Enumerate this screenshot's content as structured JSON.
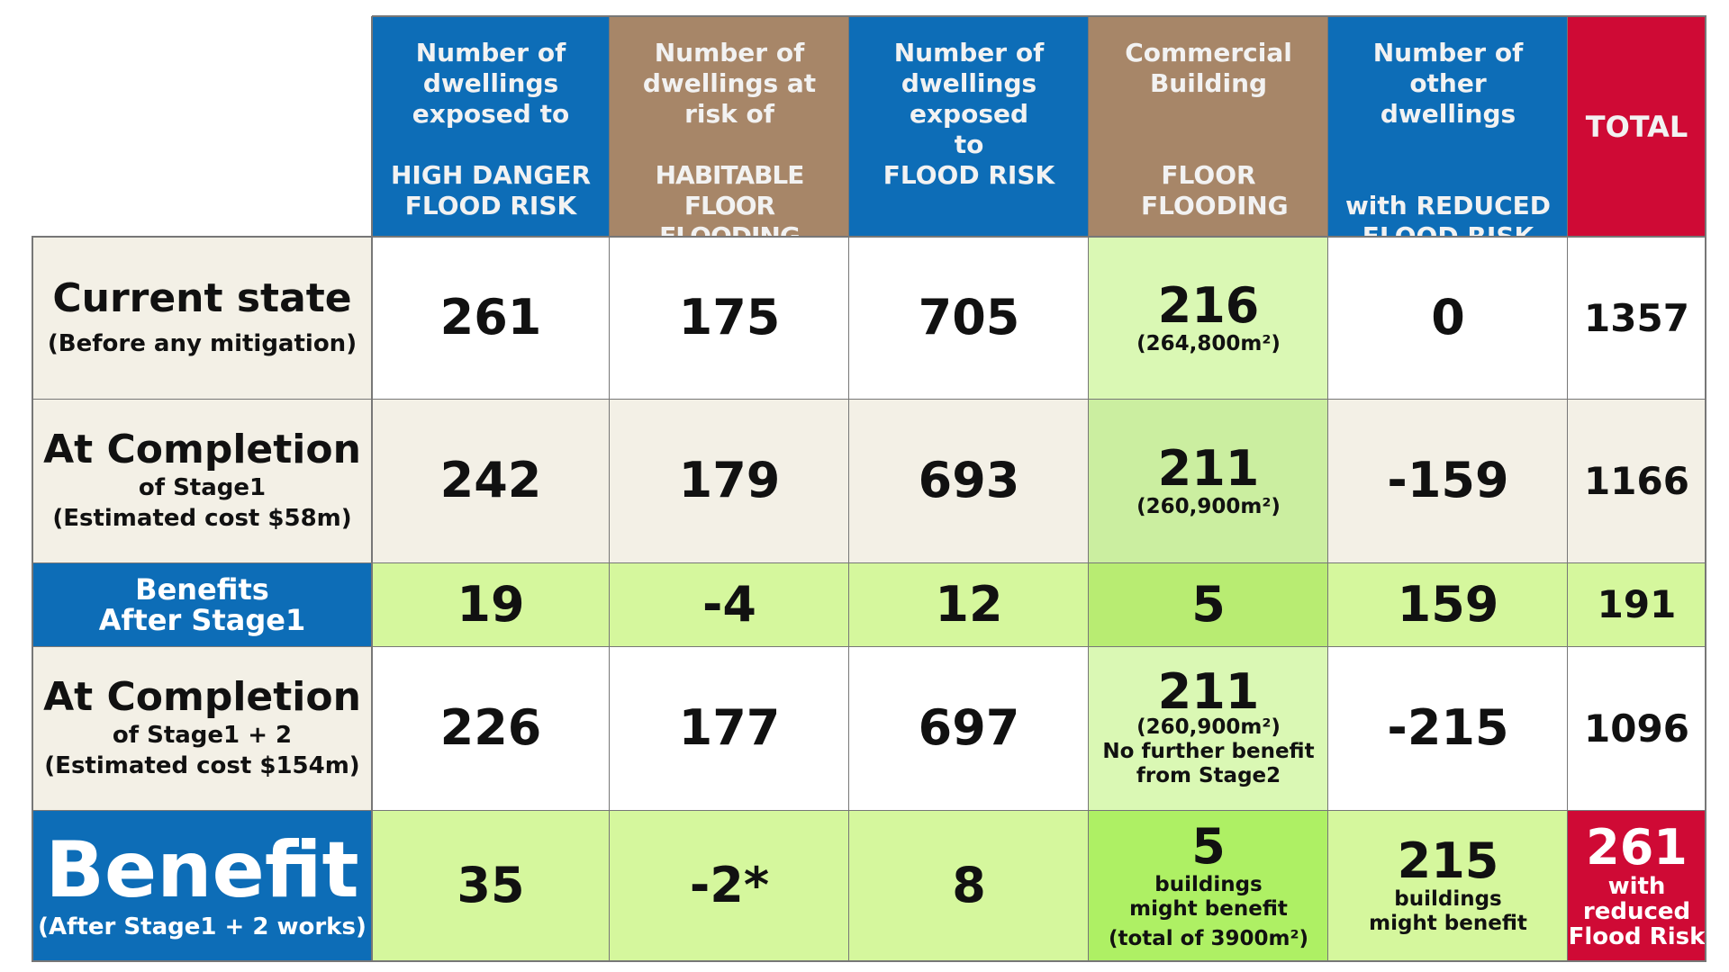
{
  "chart_data": {
    "type": "table",
    "columns": [
      {
        "top": "Number of dwellings exposed to",
        "bottom": "HIGH DANGER FLOOD RISK"
      },
      {
        "top": "Number of dwellings at risk of",
        "bottom": "HABITABLE FLOOR FLOODING"
      },
      {
        "top": "Number of dwellings exposed to",
        "bottom": "FLOOD RISK"
      },
      {
        "top": "Commercial Building",
        "bottom": "FLOOR FLOODING"
      },
      {
        "top": "Number of other dwellings",
        "bottom": "with REDUCED FLOOD RISK"
      },
      {
        "top": "TOTAL",
        "bottom": ""
      }
    ],
    "rows": [
      {
        "title": "Current state",
        "subtitle": "(Before any mitigation)",
        "values": [
          "261",
          "175",
          "705",
          "216",
          "0",
          "1357"
        ],
        "commercial_note": "(264,800m²)"
      },
      {
        "title": "At Completion",
        "subtitle": "of Stage1",
        "subtitle2": "(Estimated cost $58m)",
        "values": [
          "242",
          "179",
          "693",
          "211",
          "-159",
          "1166"
        ],
        "commercial_note": "(260,900m²)"
      },
      {
        "title": "Benefits",
        "subtitle": "After Stage1",
        "values": [
          "19",
          "-4",
          "12",
          "5",
          "159",
          "191"
        ]
      },
      {
        "title": "At Completion",
        "subtitle": "of Stage1 + 2",
        "subtitle2": "(Estimated cost $154m)",
        "values": [
          "226",
          "177",
          "697",
          "211",
          "-215",
          "1096"
        ],
        "commercial_note": "(260,900m²)",
        "commercial_note2": "No further benefit",
        "commercial_note3": "from Stage2"
      },
      {
        "title": "Benefit",
        "subtitle": "(After Stage1 + 2 works)",
        "values": [
          "35",
          "-2*",
          "8",
          "5",
          "215",
          "261"
        ],
        "commercial_note": "buildings",
        "commercial_note2": "might benefit",
        "commercial_note3": "(total of 3900m²)",
        "other_note": "buildings",
        "other_note2": "might benefit",
        "total_note": "with",
        "total_note2": "reduced",
        "total_note3": "Flood Risk"
      }
    ]
  },
  "colors": {
    "blue": "#0d6db7",
    "tan": "#a78668",
    "red": "#cf0a35",
    "cream": "#f3f0e6"
  }
}
